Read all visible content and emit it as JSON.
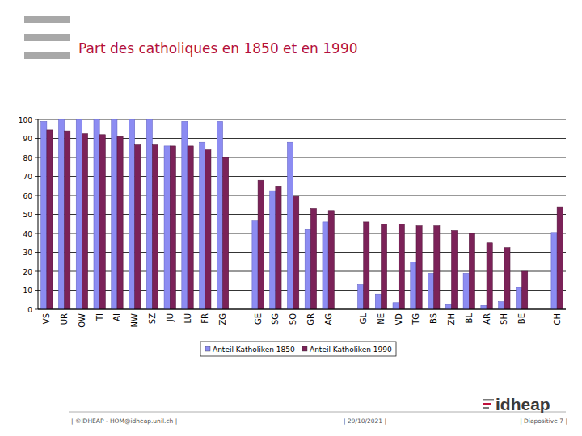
{
  "chart_data": {
    "type": "bar",
    "title": "Part des catholiques en 1850 et en 1990",
    "categories": [
      "VS",
      "UR",
      "OW",
      "TI",
      "AI",
      "NW",
      "SZ",
      "JU",
      "LU",
      "FR",
      "ZG",
      null,
      "GE",
      "SG",
      "SO",
      "GR",
      "AG",
      null,
      "GL",
      "NE",
      "VD",
      "TG",
      "BS",
      "ZH",
      "BL",
      "AR",
      "SH",
      "BE",
      null,
      "CH"
    ],
    "series": [
      {
        "name": "Anteil Katholiken 1850",
        "color": "#8c8cf2",
        "values": [
          99,
          100,
          100,
          100,
          100,
          100,
          100,
          86,
          99,
          88,
          99,
          null,
          46.5,
          62.5,
          88,
          42,
          46,
          null,
          13,
          8,
          3.5,
          25,
          19,
          2.5,
          19,
          2,
          4,
          11.5,
          null,
          40.5
        ]
      },
      {
        "name": "Anteil Katholiken 1990",
        "color": "#7b2258",
        "values": [
          94.5,
          94,
          92.5,
          92,
          91,
          87,
          87,
          86,
          86,
          84,
          80,
          null,
          68,
          65,
          59.5,
          53,
          52,
          null,
          46,
          45,
          45,
          44,
          44,
          41.5,
          40,
          35,
          32.5,
          20,
          null,
          54
        ]
      }
    ],
    "ylim": [
      0,
      100
    ],
    "yticks": [
      0,
      10,
      20,
      30,
      40,
      50,
      60,
      70,
      80,
      90,
      100
    ],
    "grid": true,
    "legend": "bottom"
  },
  "footer": {
    "left": "| ©IDHEAP - HOM@idheap.unil.ch |",
    "center": "| 29/10/2021 |",
    "right": "| Diapositive 7 |"
  },
  "logo": "idheap"
}
